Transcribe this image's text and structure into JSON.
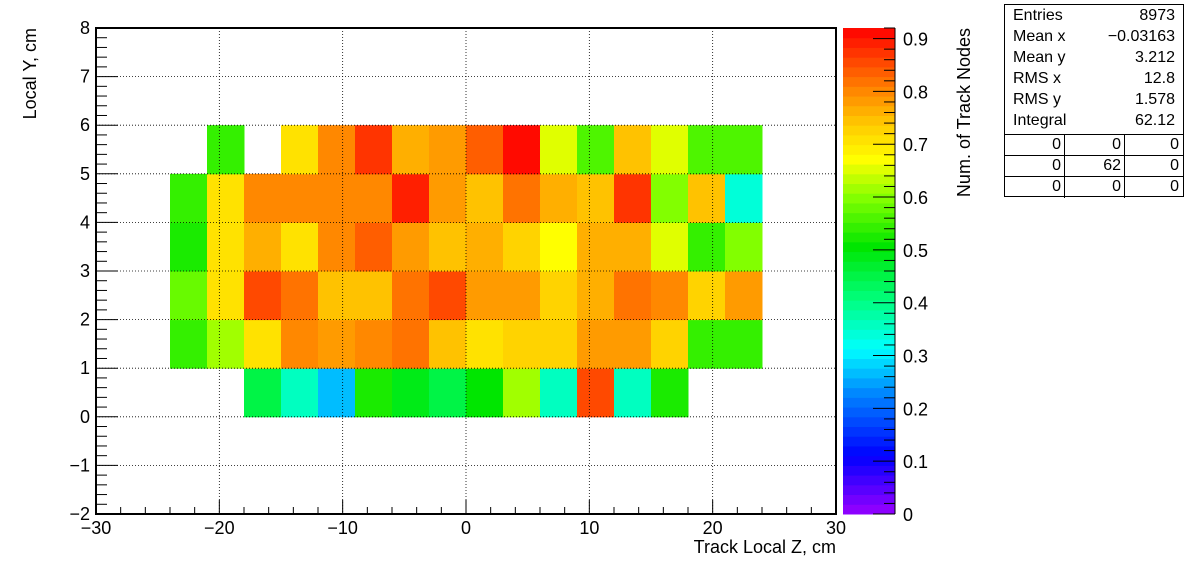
{
  "chart_data": {
    "type": "heatmap",
    "title": "",
    "xlabel": "Track Local Z, cm",
    "ylabel": "Local Y, cm",
    "zlabel": "Num. of Track Nodes",
    "xlim": [
      -30,
      30
    ],
    "ylim": [
      -2,
      8
    ],
    "zlim": [
      0,
      0.92
    ],
    "x_ticks": [
      -30,
      -20,
      -10,
      0,
      10,
      20,
      30
    ],
    "x_tick_labels": [
      "−30",
      "−20",
      "−10",
      "0",
      "10",
      "20",
      "30"
    ],
    "y_ticks": [
      -2,
      -1,
      0,
      1,
      2,
      3,
      4,
      5,
      6,
      7,
      8
    ],
    "y_tick_labels": [
      "−2",
      "−1",
      "0",
      "1",
      "2",
      "3",
      "4",
      "5",
      "6",
      "7",
      "8"
    ],
    "z_ticks": [
      0,
      0.1,
      0.2,
      0.3,
      0.4,
      0.5,
      0.6,
      0.7,
      0.8,
      0.9
    ],
    "z_tick_labels": [
      "0",
      "0.1",
      "0.2",
      "0.3",
      "0.4",
      "0.5",
      "0.6",
      "0.7",
      "0.8",
      "0.9"
    ],
    "grid": true,
    "x_bin_edges": [
      -24,
      -21,
      -18,
      -15,
      -12,
      -9,
      -6,
      -3,
      0,
      3,
      6,
      9,
      12,
      15,
      18,
      21,
      24
    ],
    "y_bin_edges": [
      0,
      1,
      2,
      3,
      4,
      5,
      6
    ],
    "values": [
      [
        null,
        null,
        0.45,
        0.35,
        0.26,
        0.52,
        0.48,
        0.45,
        0.5,
        0.62,
        0.35,
        0.85,
        0.35,
        0.52,
        null,
        null
      ],
      [
        0.55,
        0.62,
        0.7,
        0.8,
        0.78,
        0.8,
        0.82,
        0.74,
        0.71,
        0.72,
        0.72,
        0.78,
        0.78,
        0.72,
        0.55,
        0.55
      ],
      [
        0.58,
        0.71,
        0.85,
        0.82,
        0.74,
        0.74,
        0.82,
        0.86,
        0.78,
        0.78,
        0.72,
        0.77,
        0.82,
        0.8,
        0.72,
        0.78
      ],
      [
        0.53,
        0.71,
        0.76,
        0.71,
        0.8,
        0.84,
        0.79,
        0.75,
        0.77,
        0.72,
        0.68,
        0.76,
        0.76,
        0.65,
        0.55,
        0.6
      ],
      [
        0.55,
        0.7,
        0.8,
        0.8,
        0.8,
        0.8,
        0.89,
        0.78,
        0.74,
        0.81,
        0.77,
        0.75,
        0.87,
        0.6,
        0.74,
        0.34
      ],
      [
        null,
        0.54,
        null,
        0.71,
        0.8,
        0.88,
        0.76,
        0.79,
        0.84,
        0.91,
        0.66,
        0.57,
        0.74,
        0.66,
        0.56,
        0.56
      ]
    ],
    "unfilled_cell_note": ""
  },
  "stats": {
    "rows": [
      {
        "label": "Entries",
        "value": "8973"
      },
      {
        "label": "Mean x",
        "value": "−0.03163"
      },
      {
        "label": "Mean y",
        "value": "3.212"
      },
      {
        "label": "RMS x",
        "value": "12.8"
      },
      {
        "label": "RMS y",
        "value": "1.578"
      },
      {
        "label": "Integral",
        "value": "62.12"
      }
    ],
    "grid": [
      [
        "0",
        "0",
        "0"
      ],
      [
        "0",
        "62",
        "0"
      ],
      [
        "0",
        "0",
        "0"
      ]
    ]
  }
}
